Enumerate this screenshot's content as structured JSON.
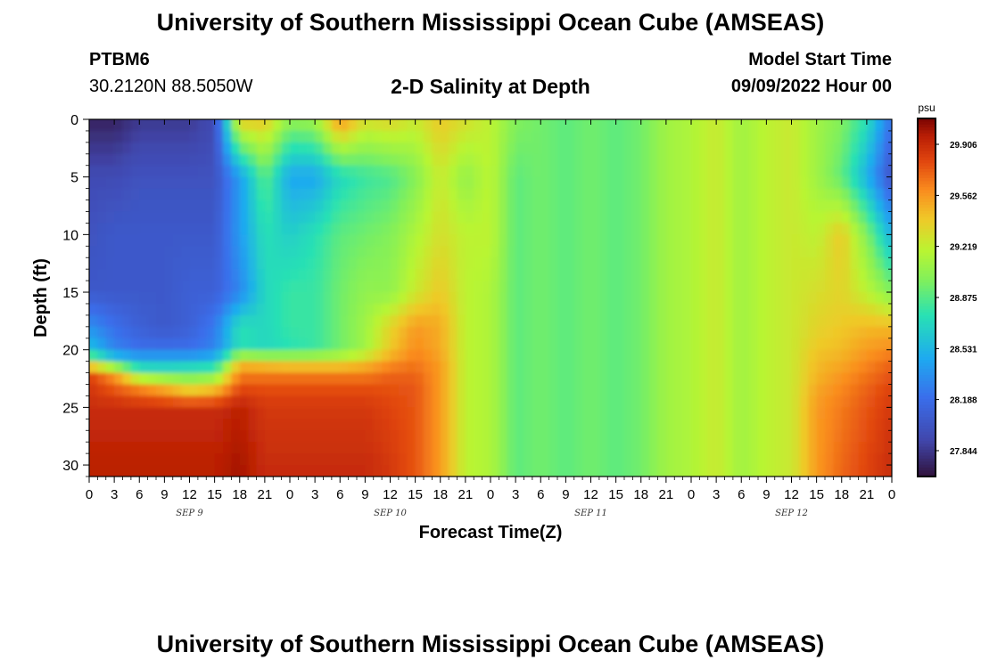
{
  "header": {
    "title": "University of Southern Mississippi Ocean Cube (AMSEAS)",
    "station": "PTBM6",
    "coords": "30.2120N  88.5050W",
    "subtitle": "2-D Salinity at Depth",
    "model_start_label": "Model Start Time",
    "model_start_value": "09/09/2022 Hour 00",
    "footer_title": "University of Southern Mississippi Ocean Cube (AMSEAS)"
  },
  "chart_data": {
    "type": "heatmap",
    "xlabel": "Forecast Time(Z)",
    "ylabel": "Depth (ft)",
    "units": "psu",
    "xlim": [
      0,
      96
    ],
    "ylim": [
      0,
      31
    ],
    "y_inverted": true,
    "x_tick_labels": [
      "0",
      "3",
      "6",
      "9",
      "12",
      "15",
      "18",
      "21",
      "0",
      "3",
      "6",
      "9",
      "12",
      "15",
      "18",
      "21",
      "0",
      "3",
      "6",
      "9",
      "12",
      "15",
      "18",
      "21",
      "0",
      "3",
      "6",
      "9",
      "12",
      "15",
      "18",
      "21",
      "0"
    ],
    "date_labels": [
      {
        "text": "SEP 9",
        "hour": 12
      },
      {
        "text": "SEP 10",
        "hour": 36
      },
      {
        "text": "SEP 11",
        "hour": 60
      },
      {
        "text": "SEP 12",
        "hour": 84
      }
    ],
    "y_tick_labels": [
      "0",
      "5",
      "10",
      "15",
      "20",
      "25",
      "30"
    ],
    "colorbar": {
      "min": 27.67,
      "max": 30.08,
      "tick_labels": [
        "29.906",
        "29.562",
        "29.219",
        "28.875",
        "28.531",
        "28.188",
        "27.844"
      ],
      "tick_values": [
        29.906,
        29.562,
        29.219,
        28.875,
        28.531,
        28.188,
        27.844
      ]
    },
    "grid": false,
    "depths_ft": [
      0,
      5,
      10,
      15,
      18,
      20,
      21,
      22,
      23,
      25,
      30
    ],
    "hours": [
      0,
      3,
      6,
      9,
      12,
      15,
      18,
      21,
      24,
      27,
      30,
      33,
      36,
      39,
      42,
      45,
      48,
      51,
      54,
      57,
      60,
      63,
      66,
      69,
      72,
      75,
      78,
      81,
      84,
      87,
      90,
      93,
      96
    ],
    "values": [
      [
        27.75,
        27.75,
        27.85,
        27.85,
        27.85,
        27.95,
        29.4,
        29.4,
        29.05,
        29.1,
        29.6,
        29.3,
        29.35,
        29.25,
        29.4,
        29.3,
        29.2,
        29.0,
        28.95,
        28.9,
        28.95,
        28.9,
        28.95,
        29.1,
        29.15,
        29.25,
        29.1,
        29.2,
        29.25,
        29.1,
        29.0,
        28.75,
        28.2
      ],
      [
        27.95,
        27.95,
        28.0,
        28.0,
        28.0,
        28.0,
        28.4,
        28.9,
        28.45,
        28.45,
        28.7,
        28.8,
        28.85,
        29.0,
        29.25,
        29.05,
        29.2,
        28.9,
        28.95,
        28.9,
        28.95,
        28.9,
        28.95,
        29.1,
        29.15,
        29.25,
        29.1,
        29.2,
        29.25,
        29.1,
        28.9,
        28.5,
        28.0
      ],
      [
        28.0,
        28.05,
        28.05,
        28.05,
        28.05,
        28.05,
        28.4,
        28.75,
        28.65,
        28.75,
        28.9,
        28.95,
        29.0,
        29.15,
        29.3,
        29.2,
        29.2,
        28.9,
        28.95,
        28.9,
        28.95,
        28.9,
        28.95,
        29.1,
        29.15,
        29.25,
        29.1,
        29.2,
        29.25,
        29.2,
        29.4,
        29.0,
        28.5
      ],
      [
        28.05,
        28.05,
        28.05,
        28.05,
        28.1,
        28.1,
        28.3,
        28.7,
        28.8,
        28.8,
        28.95,
        29.05,
        29.05,
        29.25,
        29.4,
        29.2,
        29.15,
        28.9,
        28.95,
        28.9,
        28.95,
        28.9,
        28.95,
        29.1,
        29.15,
        29.25,
        29.1,
        29.2,
        29.25,
        29.3,
        29.35,
        29.2,
        29.0
      ],
      [
        28.35,
        28.2,
        28.1,
        28.05,
        28.1,
        28.25,
        28.75,
        28.7,
        28.8,
        28.8,
        28.95,
        29.1,
        29.35,
        29.55,
        29.5,
        29.2,
        29.15,
        28.9,
        28.95,
        28.9,
        28.95,
        28.9,
        28.95,
        29.1,
        29.15,
        29.25,
        29.1,
        29.2,
        29.25,
        29.35,
        29.4,
        29.45,
        29.45
      ],
      [
        28.6,
        28.3,
        28.2,
        28.2,
        28.2,
        28.3,
        28.75,
        28.7,
        28.75,
        28.8,
        28.95,
        29.1,
        29.4,
        29.6,
        29.5,
        29.2,
        29.15,
        28.9,
        28.95,
        28.9,
        28.95,
        28.9,
        28.95,
        29.1,
        29.15,
        29.25,
        29.1,
        29.2,
        29.25,
        29.4,
        29.45,
        29.55,
        29.6
      ],
      [
        29.1,
        28.7,
        28.55,
        28.55,
        28.55,
        28.6,
        29.4,
        29.35,
        29.3,
        29.3,
        29.3,
        29.4,
        29.55,
        29.65,
        29.55,
        29.2,
        29.15,
        28.9,
        28.95,
        28.9,
        28.95,
        28.9,
        28.95,
        29.1,
        29.15,
        29.25,
        29.1,
        29.2,
        29.25,
        29.45,
        29.5,
        29.6,
        29.7
      ],
      [
        29.8,
        29.5,
        28.85,
        28.8,
        28.85,
        28.9,
        29.6,
        29.6,
        29.6,
        29.6,
        29.6,
        29.6,
        29.7,
        29.7,
        29.55,
        29.2,
        29.15,
        28.9,
        28.95,
        28.9,
        28.95,
        28.9,
        28.95,
        29.1,
        29.15,
        29.25,
        29.1,
        29.2,
        29.25,
        29.45,
        29.55,
        29.65,
        29.75
      ],
      [
        29.85,
        29.7,
        29.55,
        29.4,
        29.2,
        29.3,
        29.75,
        29.75,
        29.75,
        29.75,
        29.75,
        29.75,
        29.75,
        29.75,
        29.55,
        29.2,
        29.15,
        28.9,
        28.95,
        28.9,
        28.95,
        28.9,
        28.95,
        29.1,
        29.15,
        29.25,
        29.1,
        29.2,
        29.25,
        29.5,
        29.6,
        29.7,
        29.8
      ],
      [
        29.9,
        29.9,
        29.9,
        29.9,
        29.9,
        29.9,
        29.95,
        29.85,
        29.85,
        29.85,
        29.85,
        29.85,
        29.8,
        29.75,
        29.55,
        29.2,
        29.15,
        28.9,
        28.95,
        28.9,
        28.95,
        28.9,
        28.95,
        29.1,
        29.15,
        29.25,
        29.1,
        29.2,
        29.25,
        29.55,
        29.65,
        29.75,
        29.85
      ],
      [
        29.95,
        29.95,
        29.95,
        29.95,
        29.95,
        29.95,
        30.0,
        29.9,
        29.9,
        29.9,
        29.9,
        29.9,
        29.85,
        29.75,
        29.55,
        29.2,
        29.15,
        28.9,
        28.95,
        28.9,
        28.95,
        28.9,
        28.95,
        29.1,
        29.15,
        29.25,
        29.1,
        29.2,
        29.25,
        29.55,
        29.7,
        29.8,
        29.9
      ]
    ]
  }
}
